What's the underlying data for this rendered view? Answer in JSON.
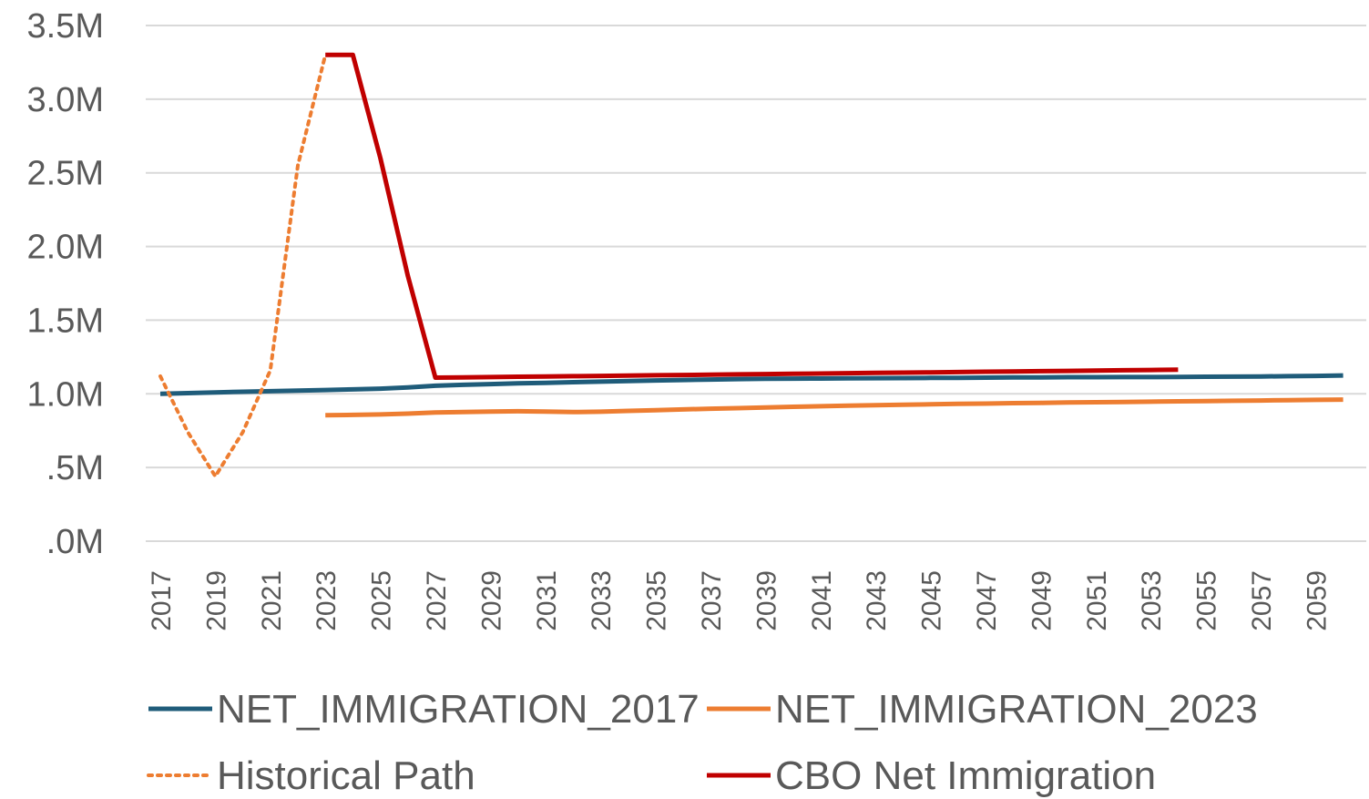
{
  "chart_data": {
    "type": "line",
    "x": [
      2017,
      2018,
      2019,
      2020,
      2021,
      2022,
      2023,
      2024,
      2025,
      2026,
      2027,
      2028,
      2029,
      2030,
      2031,
      2032,
      2033,
      2034,
      2035,
      2036,
      2037,
      2038,
      2039,
      2040,
      2041,
      2042,
      2043,
      2044,
      2045,
      2046,
      2047,
      2048,
      2049,
      2050,
      2051,
      2052,
      2053,
      2054,
      2055,
      2056,
      2057,
      2058,
      2059,
      2060
    ],
    "x_tick_labels": [
      "2017",
      "2019",
      "2021",
      "2023",
      "2025",
      "2027",
      "2029",
      "2031",
      "2033",
      "2035",
      "2037",
      "2039",
      "2041",
      "2043",
      "2045",
      "2047",
      "2049",
      "2051",
      "2053",
      "2055",
      "2057",
      "2059"
    ],
    "y_tick_labels": [
      ".0M",
      ".5M",
      "1.0M",
      "1.5M",
      "2.0M",
      "2.5M",
      "3.0M",
      "3.5M"
    ],
    "ylim": [
      0,
      3500000
    ],
    "grid": true,
    "legend_position": "bottom",
    "series": [
      {
        "name": "NET_IMMIGRATION_2017",
        "color": "#1f5c7a",
        "style": "solid",
        "values": [
          1000000,
          1005000,
          1010000,
          1014000,
          1018000,
          1022000,
          1026000,
          1030000,
          1035000,
          1043000,
          1055000,
          1061000,
          1066000,
          1071000,
          1075000,
          1079000,
          1083000,
          1087000,
          1091000,
          1094000,
          1097000,
          1100000,
          1102000,
          1103000,
          1104000,
          1105000,
          1106000,
          1107000,
          1108000,
          1109000,
          1110000,
          1111000,
          1112000,
          1113000,
          1113000,
          1114000,
          1114000,
          1115000,
          1116000,
          1117000,
          1118000,
          1120000,
          1122000,
          1125000
        ]
      },
      {
        "name": "NET_IMMIGRATION_2023",
        "color": "#ed7d31",
        "style": "solid",
        "values": [
          null,
          null,
          null,
          null,
          null,
          null,
          855000,
          857000,
          860000,
          866000,
          873000,
          877000,
          880000,
          882000,
          880000,
          876000,
          879000,
          884000,
          889000,
          894000,
          899000,
          903000,
          908000,
          912000,
          916000,
          920000,
          923000,
          926000,
          929000,
          932000,
          934000,
          937000,
          939000,
          941000,
          943000,
          945000,
          947000,
          949000,
          951000,
          953000,
          955000,
          957000,
          959000,
          961000
        ]
      },
      {
        "name": "Historical Path",
        "color": "#ed7d31",
        "style": "dotted",
        "values": [
          1120000,
          740000,
          440000,
          740000,
          1160000,
          2550000,
          3300000,
          null,
          null,
          null,
          null,
          null,
          null,
          null,
          null,
          null,
          null,
          null,
          null,
          null,
          null,
          null,
          null,
          null,
          null,
          null,
          null,
          null,
          null,
          null,
          null,
          null,
          null,
          null,
          null,
          null,
          null,
          null,
          null,
          null,
          null,
          null,
          null,
          null
        ]
      },
      {
        "name": "CBO Net Immigration",
        "color": "#c00000",
        "style": "solid",
        "values": [
          null,
          null,
          null,
          null,
          null,
          null,
          3300000,
          3300000,
          2600000,
          1800000,
          1110000,
          1112000,
          1114000,
          1116000,
          1118000,
          1120000,
          1122000,
          1124000,
          1126000,
          1128000,
          1130000,
          1132000,
          1134000,
          1136000,
          1138000,
          1140000,
          1142000,
          1144000,
          1146000,
          1148000,
          1150000,
          1152000,
          1154000,
          1156000,
          1158000,
          1160000,
          1162000,
          1164000,
          null,
          null,
          null,
          null,
          null,
          null
        ]
      }
    ]
  }
}
